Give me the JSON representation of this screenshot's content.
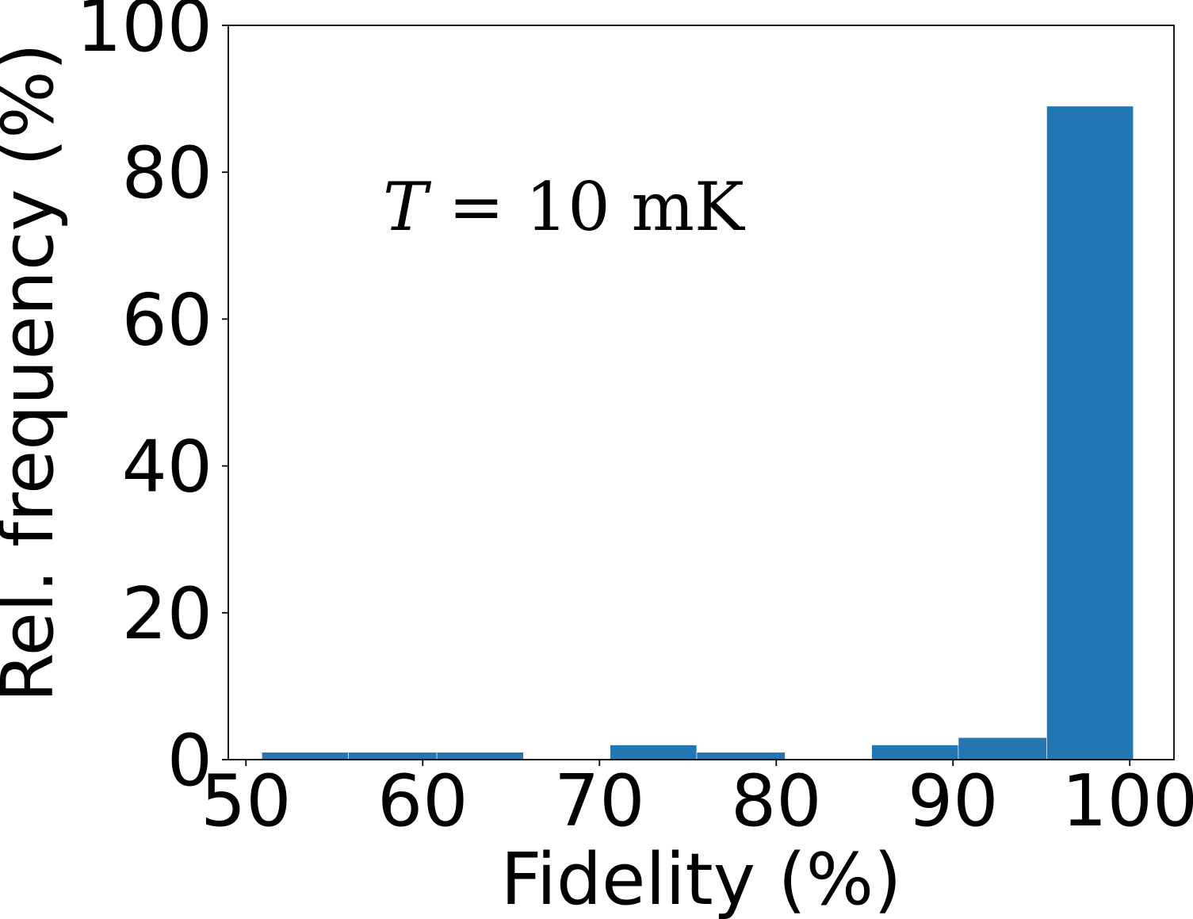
{
  "chart_data": {
    "type": "bar",
    "histogram": true,
    "bins": [
      {
        "start": 50.9,
        "end": 55.8,
        "value": 1
      },
      {
        "start": 55.8,
        "end": 60.8,
        "value": 1
      },
      {
        "start": 60.8,
        "end": 65.7,
        "value": 1
      },
      {
        "start": 65.7,
        "end": 70.6,
        "value": 0
      },
      {
        "start": 70.6,
        "end": 75.5,
        "value": 2
      },
      {
        "start": 75.5,
        "end": 80.5,
        "value": 1
      },
      {
        "start": 80.5,
        "end": 85.4,
        "value": 0
      },
      {
        "start": 85.4,
        "end": 90.3,
        "value": 2
      },
      {
        "start": 90.3,
        "end": 95.3,
        "value": 3
      },
      {
        "start": 95.3,
        "end": 100.2,
        "value": 89
      }
    ],
    "color": "#2277b3",
    "xlabel": "Fidelity (%)",
    "ylabel": "Rel. frequency (%)",
    "xlim": [
      49.0,
      102.5
    ],
    "ylim": [
      0,
      100
    ],
    "xticks": [
      "50",
      "60",
      "70",
      "80",
      "90",
      "100"
    ],
    "yticks": [
      "0",
      "20",
      "40",
      "60",
      "80",
      "100"
    ],
    "annotation": {
      "italic_var": "T",
      "rest": " = 10 mK"
    },
    "grid": false,
    "legend": "none"
  }
}
